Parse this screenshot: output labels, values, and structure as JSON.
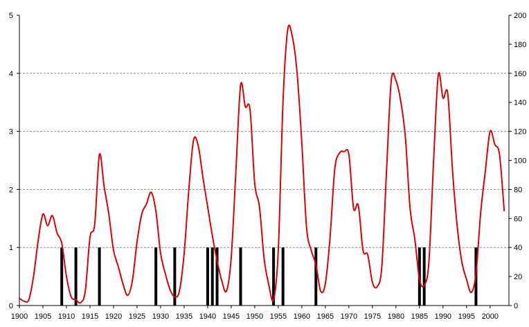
{
  "chart_data": {
    "type": "line",
    "grid": "horizontal dashed",
    "x_axis": {
      "range": [
        1900,
        2004
      ],
      "tick_labels": [
        "1900",
        "1905",
        "1910",
        "1915",
        "1920",
        "1925",
        "1930",
        "1935",
        "1940",
        "1945",
        "1950",
        "1955",
        "1960",
        "1965",
        "1970",
        "1975",
        "1980",
        "1985",
        "1990",
        "1995",
        "2000"
      ],
      "tick_values": [
        1900,
        1905,
        1910,
        1915,
        1920,
        1925,
        1930,
        1935,
        1940,
        1945,
        1950,
        1955,
        1960,
        1965,
        1970,
        1975,
        1980,
        1985,
        1990,
        1995,
        2000
      ]
    },
    "y_left": {
      "range": [
        0,
        5
      ],
      "tick_labels": [
        "0",
        "1",
        "2",
        "3",
        "4",
        "5"
      ],
      "tick_values": [
        0,
        1,
        2,
        3,
        4,
        5
      ]
    },
    "y_right": {
      "range": [
        0,
        200
      ],
      "tick_labels": [
        "0",
        "20",
        "40",
        "60",
        "80",
        "100",
        "120",
        "140",
        "160",
        "180",
        "200"
      ],
      "tick_values": [
        0,
        20,
        40,
        60,
        80,
        100,
        120,
        140,
        160,
        180,
        200
      ]
    },
    "series": [
      {
        "axis": "right",
        "color": "#e00000",
        "points": [
          [
            1900,
            5
          ],
          [
            1901,
            3
          ],
          [
            1902,
            4
          ],
          [
            1903,
            20
          ],
          [
            1904,
            45
          ],
          [
            1905,
            63
          ],
          [
            1906,
            55
          ],
          [
            1907,
            62
          ],
          [
            1908,
            50
          ],
          [
            1909,
            43
          ],
          [
            1910,
            20
          ],
          [
            1911,
            6
          ],
          [
            1912,
            4
          ],
          [
            1913,
            2
          ],
          [
            1914,
            10
          ],
          [
            1915,
            47
          ],
          [
            1916,
            56
          ],
          [
            1917,
            104
          ],
          [
            1918,
            82
          ],
          [
            1919,
            63
          ],
          [
            1920,
            38
          ],
          [
            1921,
            27
          ],
          [
            1922,
            15
          ],
          [
            1923,
            7
          ],
          [
            1924,
            17
          ],
          [
            1925,
            44
          ],
          [
            1926,
            63
          ],
          [
            1927,
            70
          ],
          [
            1928,
            78
          ],
          [
            1929,
            65
          ],
          [
            1930,
            36
          ],
          [
            1931,
            22
          ],
          [
            1932,
            11
          ],
          [
            1933,
            6
          ],
          [
            1934,
            10
          ],
          [
            1935,
            36
          ],
          [
            1936,
            80
          ],
          [
            1937,
            114
          ],
          [
            1938,
            110
          ],
          [
            1939,
            88
          ],
          [
            1940,
            68
          ],
          [
            1941,
            48
          ],
          [
            1942,
            31
          ],
          [
            1943,
            17
          ],
          [
            1944,
            10
          ],
          [
            1945,
            33
          ],
          [
            1946,
            93
          ],
          [
            1947,
            152
          ],
          [
            1948,
            137
          ],
          [
            1949,
            135
          ],
          [
            1950,
            84
          ],
          [
            1951,
            68
          ],
          [
            1952,
            32
          ],
          [
            1953,
            14
          ],
          [
            1954,
            4
          ],
          [
            1955,
            38
          ],
          [
            1956,
            140
          ],
          [
            1957,
            190
          ],
          [
            1958,
            185
          ],
          [
            1959,
            160
          ],
          [
            1960,
            112
          ],
          [
            1961,
            54
          ],
          [
            1962,
            38
          ],
          [
            1963,
            28
          ],
          [
            1964,
            10
          ],
          [
            1965,
            15
          ],
          [
            1966,
            47
          ],
          [
            1967,
            94
          ],
          [
            1968,
            105
          ],
          [
            1969,
            106
          ],
          [
            1970,
            104
          ],
          [
            1971,
            67
          ],
          [
            1972,
            69
          ],
          [
            1973,
            38
          ],
          [
            1974,
            35
          ],
          [
            1975,
            16
          ],
          [
            1976,
            13
          ],
          [
            1977,
            27
          ],
          [
            1978,
            93
          ],
          [
            1979,
            155
          ],
          [
            1980,
            155
          ],
          [
            1981,
            141
          ],
          [
            1982,
            116
          ],
          [
            1983,
            67
          ],
          [
            1984,
            46
          ],
          [
            1985,
            18
          ],
          [
            1986,
            14
          ],
          [
            1987,
            30
          ],
          [
            1988,
            100
          ],
          [
            1989,
            159
          ],
          [
            1990,
            143
          ],
          [
            1991,
            146
          ],
          [
            1992,
            94
          ],
          [
            1993,
            55
          ],
          [
            1994,
            30
          ],
          [
            1995,
            18
          ],
          [
            1996,
            9
          ],
          [
            1997,
            22
          ],
          [
            1998,
            64
          ],
          [
            1999,
            93
          ],
          [
            2000,
            120
          ],
          [
            2001,
            111
          ],
          [
            2002,
            104
          ],
          [
            2003,
            65
          ]
        ]
      }
    ],
    "bars": {
      "axis": "left",
      "color": "#000000",
      "value": 1,
      "x": [
        1909,
        1912,
        1917,
        1929,
        1933,
        1940,
        1941,
        1942,
        1947,
        1954,
        1956,
        1963,
        1985,
        1986,
        1997
      ]
    }
  }
}
